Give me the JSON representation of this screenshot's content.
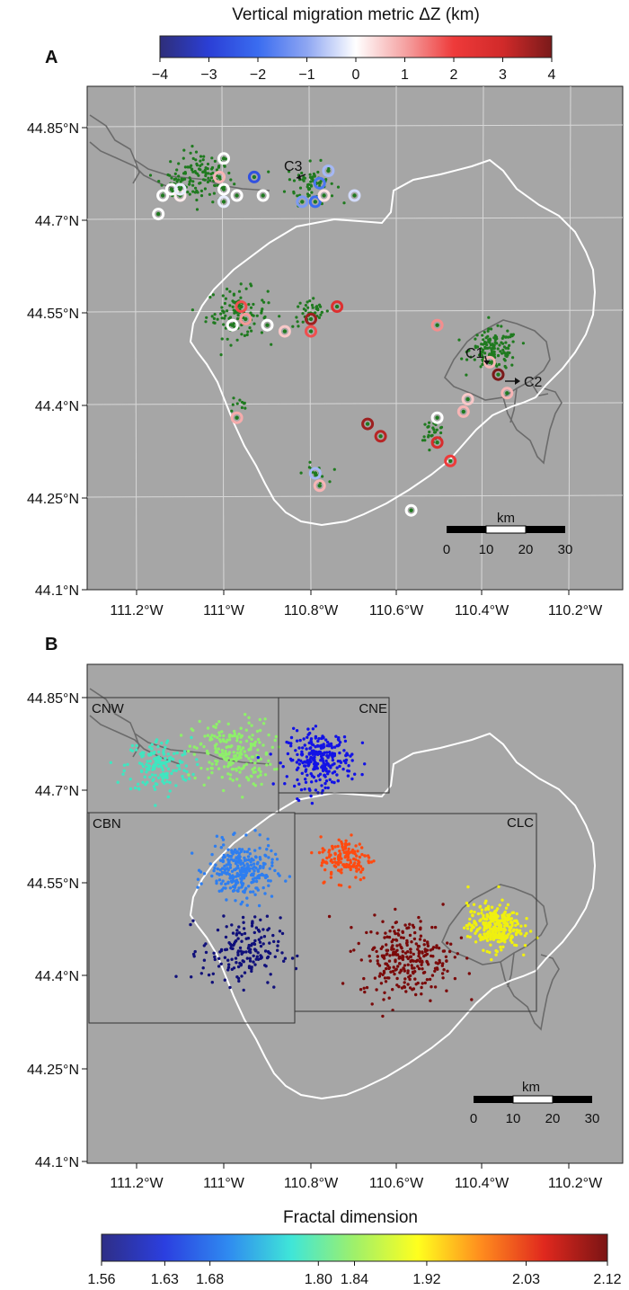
{
  "panel_a": {
    "label": "A",
    "colorbar": {
      "title": "Vertical migration metric ΔZ (km)",
      "ticks": [
        "−4",
        "−3",
        "−2",
        "−1",
        "0",
        "1",
        "2",
        "3",
        "4"
      ],
      "tick_values": [
        -4,
        -3,
        -2,
        -1,
        0,
        1,
        2,
        3,
        4
      ],
      "colors": [
        "#2e2e7a",
        "#2b3fd6",
        "#3a6cf0",
        "#8ea6f2",
        "#ffffff",
        "#f5a3a3",
        "#ee3a3a",
        "#d12a2a",
        "#7a1a1a"
      ]
    },
    "lat_ticks": [
      "44.85°N",
      "44.7°N",
      "44.55°N",
      "44.4°N",
      "44.25°N",
      "44.1°N"
    ],
    "lon_ticks": [
      "111.2°W",
      "111°W",
      "110.8°W",
      "110.6°W",
      "110.4°W",
      "110.2°W"
    ],
    "labels": {
      "c1": "C1",
      "c2": "C2",
      "c3": "C3"
    },
    "scalebar": {
      "title": "km",
      "ticks": [
        "0",
        "10",
        "20",
        "30"
      ]
    }
  },
  "panel_b": {
    "label": "B",
    "lat_ticks": [
      "44.85°N",
      "44.7°N",
      "44.55°N",
      "44.4°N",
      "44.25°N",
      "44.1°N"
    ],
    "lon_ticks": [
      "111.2°W",
      "111°W",
      "110.8°W",
      "110.6°W",
      "110.4°W",
      "110.2°W"
    ],
    "boxes": [
      "CNW",
      "CNE",
      "CBN",
      "CLC"
    ],
    "scalebar": {
      "title": "km",
      "ticks": [
        "0",
        "10",
        "20",
        "30"
      ]
    },
    "colorbar": {
      "title": "Fractal dimension",
      "ticks": [
        "1.56",
        "1.63",
        "1.68",
        "1.80",
        "1.84",
        "1.92",
        "2.03",
        "2.12"
      ],
      "tick_values": [
        1.56,
        1.63,
        1.68,
        1.8,
        1.84,
        1.92,
        2.03,
        2.12
      ],
      "colors": [
        "#2e2e86",
        "#2b3fe0",
        "#2f8af0",
        "#3fe6d8",
        "#9ff06a",
        "#ffff1e",
        "#ff8c1e",
        "#e0281e",
        "#7a1414"
      ]
    }
  },
  "chart_data": [
    {
      "type": "scatter",
      "panel": "A",
      "description_units": "lon (°E, negative = W), lat (°N)",
      "xlim": [
        -111.3,
        -110.1
      ],
      "ylim": [
        44.1,
        44.9
      ],
      "background": "#a6a6a6",
      "event_color": "#1f7a1f",
      "event_clusters": [
        {
          "lon": -111.05,
          "lat": 44.77,
          "spread": 0.05,
          "n": 120
        },
        {
          "lon": -111.12,
          "lat": 44.76,
          "spread": 0.03,
          "n": 25
        },
        {
          "lon": -110.8,
          "lat": 44.76,
          "spread": 0.04,
          "n": 60
        },
        {
          "lon": -110.97,
          "lat": 44.55,
          "spread": 0.05,
          "n": 110
        },
        {
          "lon": -110.8,
          "lat": 44.55,
          "spread": 0.03,
          "n": 40
        },
        {
          "lon": -110.38,
          "lat": 44.49,
          "spread": 0.04,
          "n": 140
        },
        {
          "lon": -110.52,
          "lat": 44.36,
          "spread": 0.02,
          "n": 30
        },
        {
          "lon": -110.79,
          "lat": 44.29,
          "spread": 0.02,
          "n": 15
        },
        {
          "lon": -110.97,
          "lat": 44.4,
          "spread": 0.02,
          "n": 10
        }
      ],
      "migration_markers": [
        {
          "lon": -111.15,
          "lat": 44.71,
          "dz": 0
        },
        {
          "lon": -111.14,
          "lat": 44.74,
          "dz": 0
        },
        {
          "lon": -111.12,
          "lat": 44.75,
          "dz": 0
        },
        {
          "lon": -111.1,
          "lat": 44.74,
          "dz": 0.2
        },
        {
          "lon": -111.1,
          "lat": 44.75,
          "dz": -0.2
        },
        {
          "lon": -111.0,
          "lat": 44.8,
          "dz": 0
        },
        {
          "lon": -111.01,
          "lat": 44.77,
          "dz": 0.8
        },
        {
          "lon": -111.0,
          "lat": 44.75,
          "dz": 0
        },
        {
          "lon": -111.0,
          "lat": 44.73,
          "dz": -0.2
        },
        {
          "lon": -110.97,
          "lat": 44.74,
          "dz": 0
        },
        {
          "lon": -110.93,
          "lat": 44.77,
          "dz": -2.6
        },
        {
          "lon": -110.91,
          "lat": 44.74,
          "dz": 0
        },
        {
          "lon": -110.82,
          "lat": 44.73,
          "dz": -1.2
        },
        {
          "lon": -110.79,
          "lat": 44.73,
          "dz": -2.0
        },
        {
          "lon": -110.78,
          "lat": 44.76,
          "dz": -1.8
        },
        {
          "lon": -110.77,
          "lat": 44.74,
          "dz": 0.3
        },
        {
          "lon": -110.76,
          "lat": 44.78,
          "dz": -0.8
        },
        {
          "lon": -110.7,
          "lat": 44.74,
          "dz": -0.4
        },
        {
          "lon": -110.96,
          "lat": 44.56,
          "dz": 1.8
        },
        {
          "lon": -110.95,
          "lat": 44.54,
          "dz": 1.1
        },
        {
          "lon": -110.98,
          "lat": 44.53,
          "dz": 0
        },
        {
          "lon": -110.9,
          "lat": 44.53,
          "dz": 0
        },
        {
          "lon": -110.86,
          "lat": 44.52,
          "dz": 0.6
        },
        {
          "lon": -110.8,
          "lat": 44.54,
          "dz": 3.6
        },
        {
          "lon": -110.8,
          "lat": 44.52,
          "dz": 1.8
        },
        {
          "lon": -110.74,
          "lat": 44.56,
          "dz": 2.6
        },
        {
          "lon": -110.51,
          "lat": 44.53,
          "dz": 1.2
        },
        {
          "lon": -110.39,
          "lat": 44.47,
          "dz": 0.8
        },
        {
          "lon": -110.37,
          "lat": 44.45,
          "dz": 4.0
        },
        {
          "lon": -110.35,
          "lat": 44.42,
          "dz": 0.8
        },
        {
          "lon": -110.44,
          "lat": 44.41,
          "dz": 0.6
        },
        {
          "lon": -110.45,
          "lat": 44.39,
          "dz": 0.8
        },
        {
          "lon": -110.51,
          "lat": 44.38,
          "dz": 0
        },
        {
          "lon": -110.67,
          "lat": 44.37,
          "dz": 3.6
        },
        {
          "lon": -110.64,
          "lat": 44.35,
          "dz": 3.3
        },
        {
          "lon": -110.51,
          "lat": 44.34,
          "dz": 2.8
        },
        {
          "lon": -110.48,
          "lat": 44.31,
          "dz": 2.0
        },
        {
          "lon": -110.97,
          "lat": 44.38,
          "dz": 0.9
        },
        {
          "lon": -110.79,
          "lat": 44.29,
          "dz": -0.8
        },
        {
          "lon": -110.78,
          "lat": 44.27,
          "dz": 0.8
        },
        {
          "lon": -110.57,
          "lat": 44.23,
          "dz": 0
        }
      ]
    },
    {
      "type": "scatter",
      "panel": "B",
      "xlim": [
        -111.3,
        -110.1
      ],
      "ylim": [
        44.1,
        44.9
      ],
      "background": "#a6a6a6",
      "clusters": [
        {
          "box": "CNW",
          "fractal_dimension": 1.8,
          "color": "#3fe6c0",
          "lon": -111.15,
          "lat": 44.74,
          "spread": 0.05,
          "n": 160
        },
        {
          "box": "CNW",
          "fractal_dimension": 1.84,
          "color": "#8ef06a",
          "lon": -110.98,
          "lat": 44.76,
          "spread": 0.06,
          "n": 220
        },
        {
          "box": "CNE",
          "fractal_dimension": 1.56,
          "color": "#1212e6",
          "lon": -110.78,
          "lat": 44.75,
          "spread": 0.05,
          "n": 260
        },
        {
          "box": "CBN",
          "fractal_dimension": 1.68,
          "color": "#2e7ef0",
          "lon": -110.96,
          "lat": 44.57,
          "spread": 0.05,
          "n": 280
        },
        {
          "box": "CBN",
          "fractal_dimension": 1.56,
          "color": "#10107a",
          "lon": -110.96,
          "lat": 44.44,
          "spread": 0.06,
          "n": 170
        },
        {
          "box": "CLC",
          "fractal_dimension": 2.03,
          "color": "#ff4a10",
          "lon": -110.72,
          "lat": 44.59,
          "spread": 0.04,
          "n": 140
        },
        {
          "box": "CLC",
          "fractal_dimension": 2.12,
          "color": "#7a0a0a",
          "lon": -110.58,
          "lat": 44.43,
          "spread": 0.07,
          "n": 280
        },
        {
          "box": "CLC",
          "fractal_dimension": 1.92,
          "color": "#f0f010",
          "lon": -110.38,
          "lat": 44.48,
          "spread": 0.04,
          "n": 300
        }
      ]
    }
  ]
}
